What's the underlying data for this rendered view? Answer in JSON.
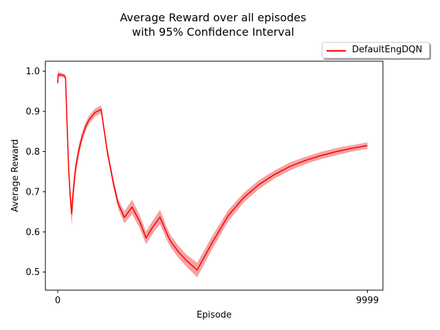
{
  "chart_data": {
    "type": "line",
    "title": "Average Reward over all episodes",
    "subtitle": "with 95% Confidence Interval",
    "xlabel": "Episode",
    "ylabel": "Average Reward",
    "xlim": [
      -400,
      10500
    ],
    "ylim": [
      0.455,
      1.025
    ],
    "x_ticks": [
      0,
      9999
    ],
    "x_tick_labels": [
      "0",
      "9999"
    ],
    "y_ticks": [
      0.5,
      0.6,
      0.7,
      0.8,
      0.9,
      1.0
    ],
    "y_tick_labels": [
      "0.5",
      "0.6",
      "0.7",
      "0.8",
      "0.9",
      "1.0"
    ],
    "grid": false,
    "legend_position": "top-right, outside plot",
    "series": [
      {
        "name": "DefaultEngDQN",
        "color": "#ff0000",
        "ci_color": "#f4a3a3",
        "x": [
          0,
          10,
          30,
          60,
          100,
          150,
          200,
          250,
          300,
          350,
          400,
          450,
          500,
          550,
          600,
          700,
          800,
          900,
          1000,
          1200,
          1400,
          1600,
          1800,
          1950,
          2150,
          2400,
          2650,
          2850,
          3050,
          3300,
          3550,
          3650,
          3900,
          4150,
          4500,
          5000,
          5500,
          6000,
          6500,
          7000,
          7500,
          8000,
          8500,
          9000,
          9500,
          9999
        ],
        "y": [
          0.97,
          0.99,
          0.993,
          0.99,
          0.992,
          0.99,
          0.989,
          0.985,
          0.87,
          0.76,
          0.69,
          0.645,
          0.7,
          0.74,
          0.77,
          0.81,
          0.84,
          0.862,
          0.878,
          0.897,
          0.905,
          0.8,
          0.72,
          0.67,
          0.636,
          0.662,
          0.625,
          0.585,
          0.61,
          0.637,
          0.591,
          0.576,
          0.55,
          0.529,
          0.505,
          0.575,
          0.64,
          0.685,
          0.718,
          0.743,
          0.763,
          0.778,
          0.79,
          0.8,
          0.808,
          0.815
        ],
        "ci_half": [
          0.012,
          0.01,
          0.008,
          0.006,
          0.005,
          0.005,
          0.005,
          0.006,
          0.007,
          0.012,
          0.02,
          0.03,
          0.025,
          0.02,
          0.016,
          0.014,
          0.012,
          0.011,
          0.01,
          0.01,
          0.01,
          0.011,
          0.011,
          0.012,
          0.015,
          0.018,
          0.016,
          0.016,
          0.016,
          0.018,
          0.016,
          0.015,
          0.015,
          0.015,
          0.018,
          0.016,
          0.014,
          0.012,
          0.011,
          0.01,
          0.01,
          0.009,
          0.009,
          0.009,
          0.008,
          0.008
        ]
      }
    ]
  }
}
